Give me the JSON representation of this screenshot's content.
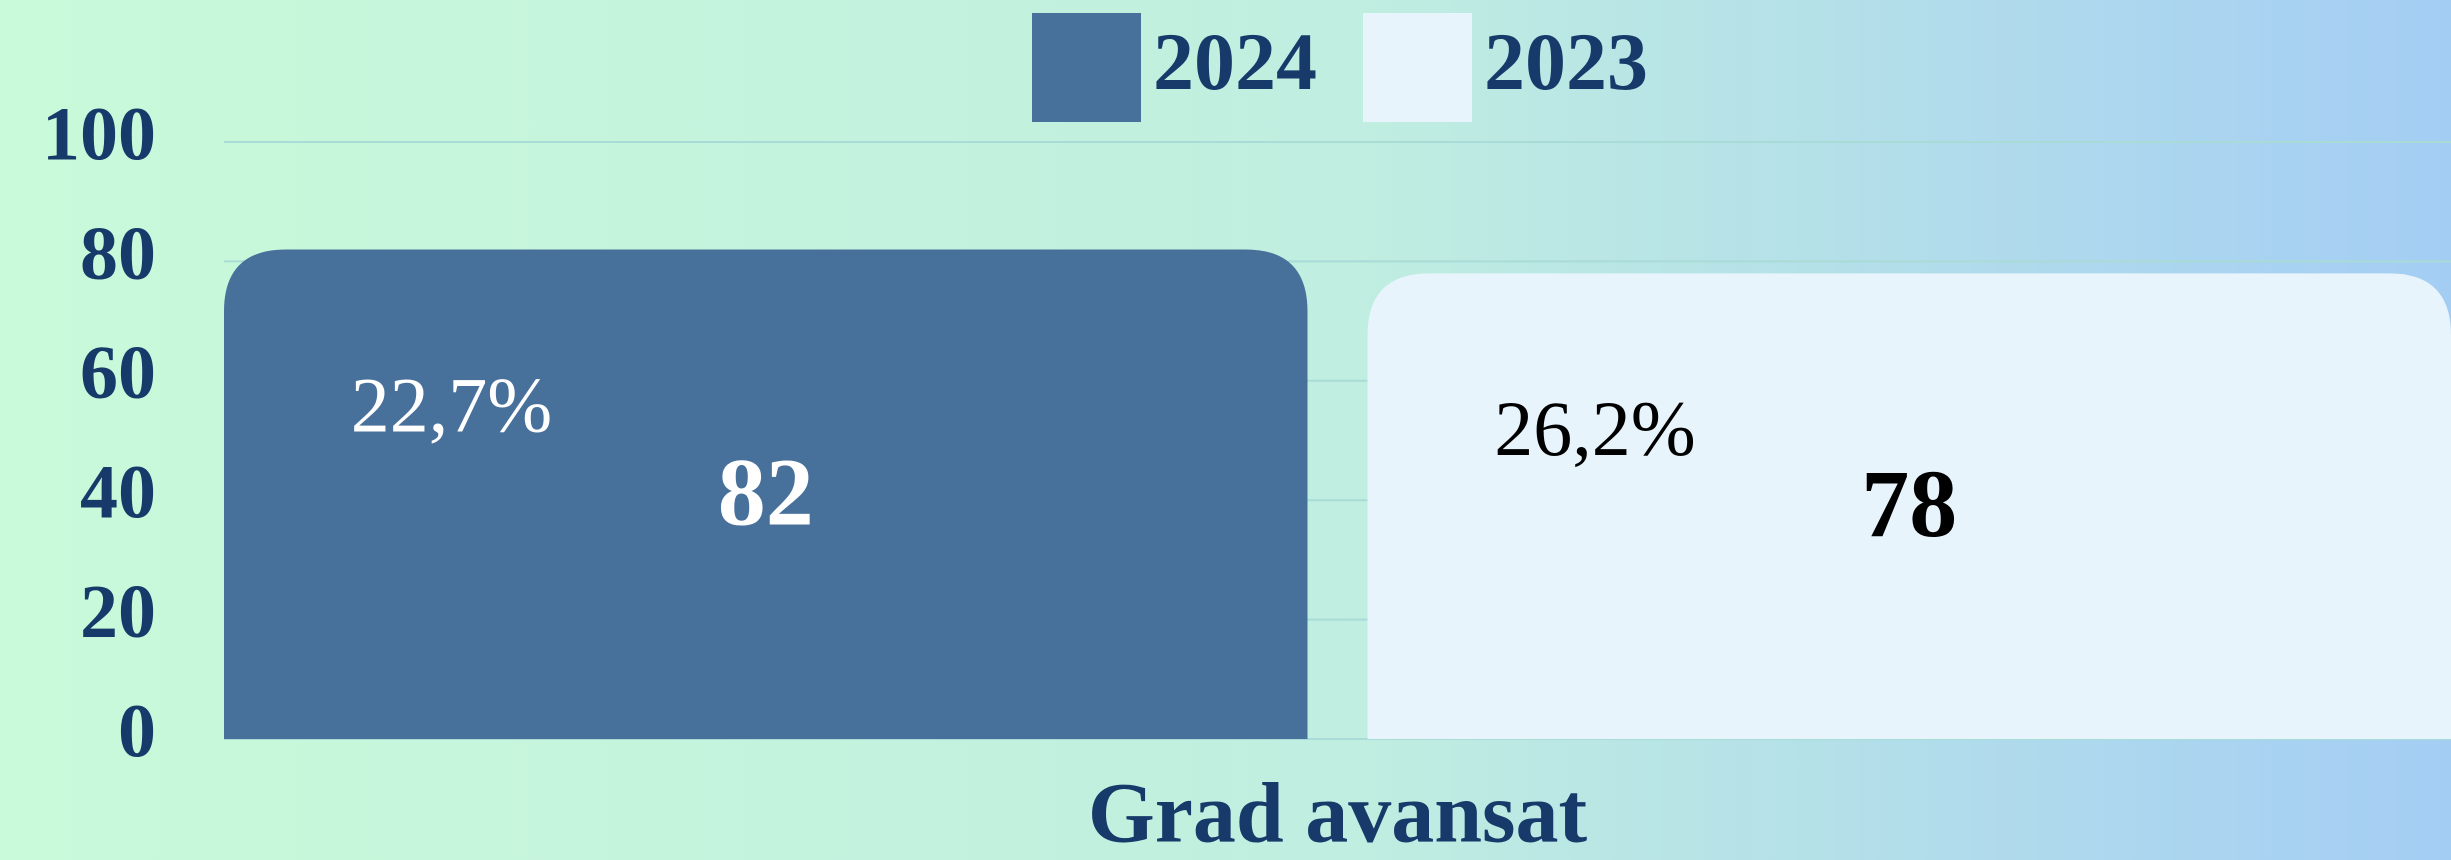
{
  "chart_data": {
    "type": "bar",
    "categories": [
      "Grad avansat"
    ],
    "series": [
      {
        "name": "2024",
        "color": "#47709b",
        "label_color": "#ffffff",
        "values": [
          82
        ],
        "labels": [
          "22,7%"
        ]
      },
      {
        "name": "2023",
        "color": "#e8f4fb",
        "label_color": "#000000",
        "values": [
          78
        ],
        "labels": [
          "26,2%"
        ]
      }
    ],
    "ylim": [
      0,
      100
    ],
    "yticks": [
      0,
      20,
      40,
      60,
      80,
      100
    ],
    "grid": true,
    "legend": "top"
  }
}
